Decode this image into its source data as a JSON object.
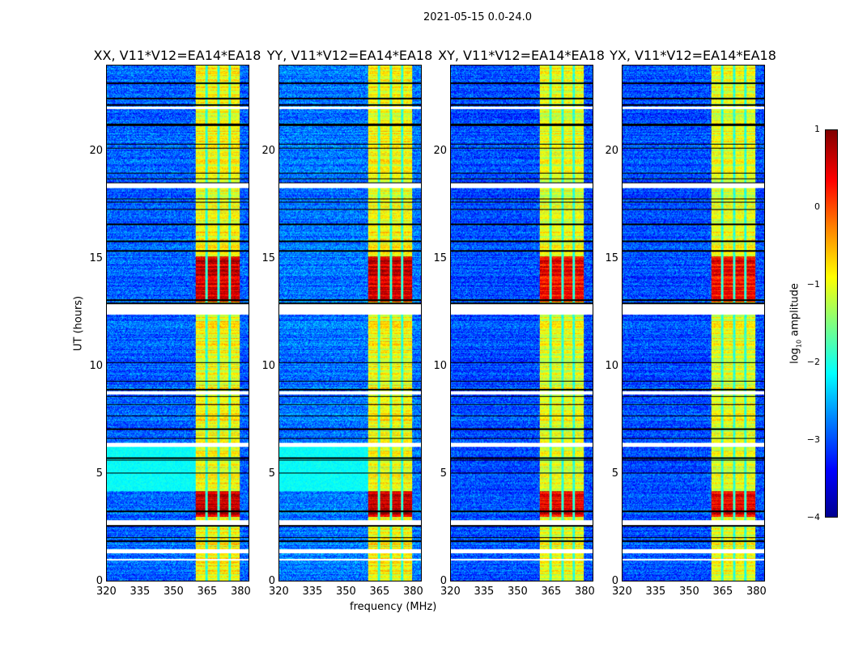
{
  "chart_data": {
    "type": "heatmap",
    "title": "2021-05-15 0.0-24.0",
    "xlabel": "frequency (MHz)",
    "ylabel": "UT (hours)",
    "xlim": [
      320,
      384
    ],
    "ylim": [
      0,
      24
    ],
    "xticks": [
      "320",
      "335",
      "350",
      "365",
      "380"
    ],
    "yticks": [
      "0",
      "5",
      "10",
      "15",
      "20"
    ],
    "colorbar": {
      "label": "log10 amplitude",
      "label_main": "log",
      "label_sub": "10",
      "label_rest": " amplitude",
      "range": [
        -4,
        1
      ],
      "ticks": [
        "1",
        "0",
        "−1",
        "−2",
        "−3",
        "−4"
      ],
      "colormap": "jet"
    },
    "panels": [
      {
        "title": "XX, V11*V12=EA14*EA18",
        "base": -2.9,
        "band": -0.9,
        "strong": 0.6,
        "cyan_low": true
      },
      {
        "title": "YY, V11*V12=EA14*EA18",
        "base": -2.8,
        "band": -0.9,
        "strong": 0.6,
        "cyan_low": true
      },
      {
        "title": "XY, V11*V12=EA14*EA18",
        "base": -3.0,
        "band": -1.0,
        "strong": 0.4,
        "cyan_low": false
      },
      {
        "title": "YX, V11*V12=EA14*EA18",
        "base": -3.0,
        "band": -1.0,
        "strong": 0.4,
        "cyan_low": false
      }
    ],
    "rfi_band_MHz": [
      360,
      380
    ],
    "rfi_subband_gaps_MHz": [
      364.8,
      370.2,
      375.3
    ],
    "strong_periods_UT": [
      [
        13.0,
        15.1
      ],
      [
        3.0,
        4.2
      ]
    ],
    "blank_periods_UT": [
      [
        0.95,
        1.05
      ],
      [
        1.3,
        1.5
      ],
      [
        2.6,
        2.85
      ],
      [
        6.25,
        6.45
      ],
      [
        8.7,
        8.85
      ],
      [
        12.4,
        12.9
      ],
      [
        18.3,
        18.55
      ],
      [
        22.0,
        22.1
      ]
    ]
  }
}
